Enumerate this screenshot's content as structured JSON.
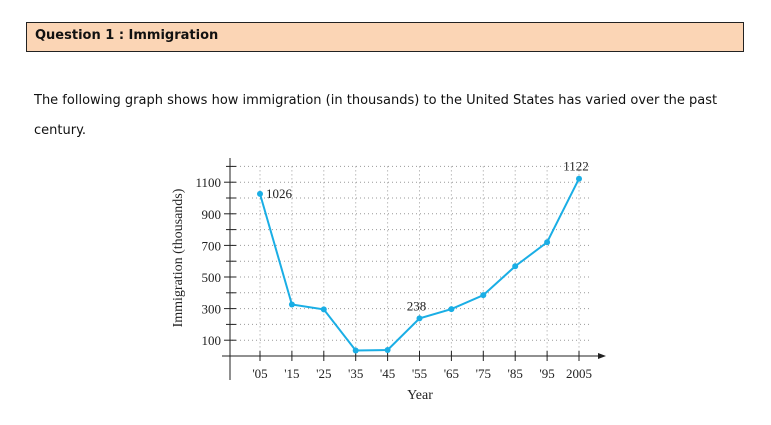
{
  "question": {
    "title": "Question 1 : Immigration"
  },
  "intro": "The following graph shows how immigration (in thousands) to the United States has varied over the past century.",
  "colors": {
    "header_bg": "#fbd5b5",
    "series": "#1aaee5"
  },
  "chart_data": {
    "type": "line",
    "title": "",
    "xlabel": "Year",
    "ylabel": "Immigration (thousands)",
    "categories": [
      "'05",
      "'15",
      "'25",
      "'35",
      "'45",
      "'55",
      "'65",
      "'75",
      "'85",
      "'95",
      "2005"
    ],
    "values": [
      1026,
      326,
      295,
      35,
      38,
      238,
      297,
      385,
      568,
      720,
      1122
    ],
    "yticks": [
      "100",
      "300",
      "500",
      "700",
      "900",
      "1100"
    ],
    "ylim": [
      0,
      1200
    ],
    "grid": true,
    "data_labels": [
      {
        "index": 0,
        "text": "1026"
      },
      {
        "index": 5,
        "text": "238"
      },
      {
        "index": 10,
        "text": "1122"
      }
    ]
  }
}
